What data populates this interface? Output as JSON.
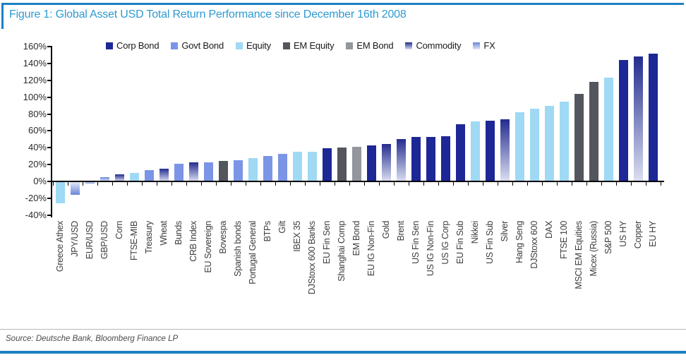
{
  "figure": {
    "title": "Figure 1: Global Asset USD Total Return Performance since December 16th 2008",
    "source": "Source: Deutsche Bank, Bloomberg Finance LP"
  },
  "style_colors": {
    "title_blue": "#2e9ad1",
    "rule_blue": "#1c80c3",
    "axis_black": "#000000",
    "label_gray": "#3d3d3d"
  },
  "chart_data": {
    "type": "bar",
    "title": "Global Asset USD Total Return Performance since December 16th 2008",
    "xlabel": "",
    "ylabel": "",
    "ylim": [
      -40,
      160
    ],
    "ytick_step": 20,
    "yticks": [
      160,
      140,
      120,
      100,
      80,
      60,
      40,
      20,
      0,
      -20,
      -40
    ],
    "ytick_suffix": "%",
    "grid": false,
    "legend_position": "top",
    "legend": [
      {
        "key": "corp",
        "label": "Corp Bond"
      },
      {
        "key": "govt",
        "label": "Govt Bond"
      },
      {
        "key": "equity",
        "label": "Equity"
      },
      {
        "key": "em_equity",
        "label": "EM Equity"
      },
      {
        "key": "em_bond",
        "label": "EM Bond"
      },
      {
        "key": "commodity",
        "label": "Commodity"
      },
      {
        "key": "fx",
        "label": "FX"
      }
    ],
    "palette": {
      "corp": {
        "fill": "#1e2796"
      },
      "govt": {
        "fill": "#7b94e6"
      },
      "equity": {
        "fill": "#9fd9f4"
      },
      "em_equity": {
        "fill": "#54565e"
      },
      "em_bond": {
        "fill": "#94969e"
      },
      "commodity": {
        "gradient": true,
        "fill_start": "#232c8f",
        "fill_end": "#dcdff1"
      },
      "fx": {
        "gradient": true,
        "fill_start": "#6b85d8",
        "fill_end": "#e2e8f8"
      }
    },
    "bars": [
      {
        "label": "Greece Athex",
        "series": "equity",
        "value": -25
      },
      {
        "label": "JPY/USD",
        "series": "fx",
        "value": -15
      },
      {
        "label": "EUR/USD",
        "series": "fx",
        "value": -2
      },
      {
        "label": "GBP/USD",
        "series": "fx",
        "value": 5
      },
      {
        "label": "Corn",
        "series": "commodity",
        "value": 8
      },
      {
        "label": "FTSE-MIB",
        "series": "equity",
        "value": 10
      },
      {
        "label": "Treasury",
        "series": "govt",
        "value": 13
      },
      {
        "label": "Wheat",
        "series": "commodity",
        "value": 15
      },
      {
        "label": "Bunds",
        "series": "govt",
        "value": 21
      },
      {
        "label": "CRB Index",
        "series": "commodity",
        "value": 23
      },
      {
        "label": "EU Sovereign",
        "series": "govt",
        "value": 23
      },
      {
        "label": "Bovespa",
        "series": "em_equity",
        "value": 24
      },
      {
        "label": "Spanish bonds",
        "series": "govt",
        "value": 25
      },
      {
        "label": "Portugal General",
        "series": "equity",
        "value": 28
      },
      {
        "label": "BTPs",
        "series": "govt",
        "value": 30
      },
      {
        "label": "Gilt",
        "series": "govt",
        "value": 33
      },
      {
        "label": "IBEX 35",
        "series": "equity",
        "value": 35
      },
      {
        "label": "DJStoxx 600 Banks",
        "series": "equity",
        "value": 35
      },
      {
        "label": "EU Fin Sen",
        "series": "corp",
        "value": 39
      },
      {
        "label": "Shanghai Comp",
        "series": "em_equity",
        "value": 40
      },
      {
        "label": "EM Bond",
        "series": "em_bond",
        "value": 41
      },
      {
        "label": "EU IG Non-Fin",
        "series": "corp",
        "value": 43
      },
      {
        "label": "Gold",
        "series": "commodity",
        "value": 44
      },
      {
        "label": "Brent",
        "series": "commodity",
        "value": 50
      },
      {
        "label": "US Fin Sen",
        "series": "corp",
        "value": 53
      },
      {
        "label": "US IG Non-Fin",
        "series": "corp",
        "value": 53
      },
      {
        "label": "US IG Corp",
        "series": "corp",
        "value": 54
      },
      {
        "label": "EU Fin Sub",
        "series": "corp",
        "value": 68
      },
      {
        "label": "Nikkei",
        "series": "equity",
        "value": 71
      },
      {
        "label": "US Fin Sub",
        "series": "corp",
        "value": 72
      },
      {
        "label": "Silver",
        "series": "commodity",
        "value": 74
      },
      {
        "label": "Hang Seng",
        "series": "equity",
        "value": 82
      },
      {
        "label": "DJStoxx 600",
        "series": "equity",
        "value": 86
      },
      {
        "label": "DAX",
        "series": "equity",
        "value": 90
      },
      {
        "label": "FTSE 100",
        "series": "equity",
        "value": 95
      },
      {
        "label": "MSCI EM Equities",
        "series": "em_equity",
        "value": 104
      },
      {
        "label": "Micex (Russia)",
        "series": "em_equity",
        "value": 118
      },
      {
        "label": "S&P 500",
        "series": "equity",
        "value": 123
      },
      {
        "label": "US HY",
        "series": "corp",
        "value": 144
      },
      {
        "label": "Copper",
        "series": "commodity",
        "value": 148
      },
      {
        "label": "EU HY",
        "series": "corp",
        "value": 152
      }
    ]
  }
}
